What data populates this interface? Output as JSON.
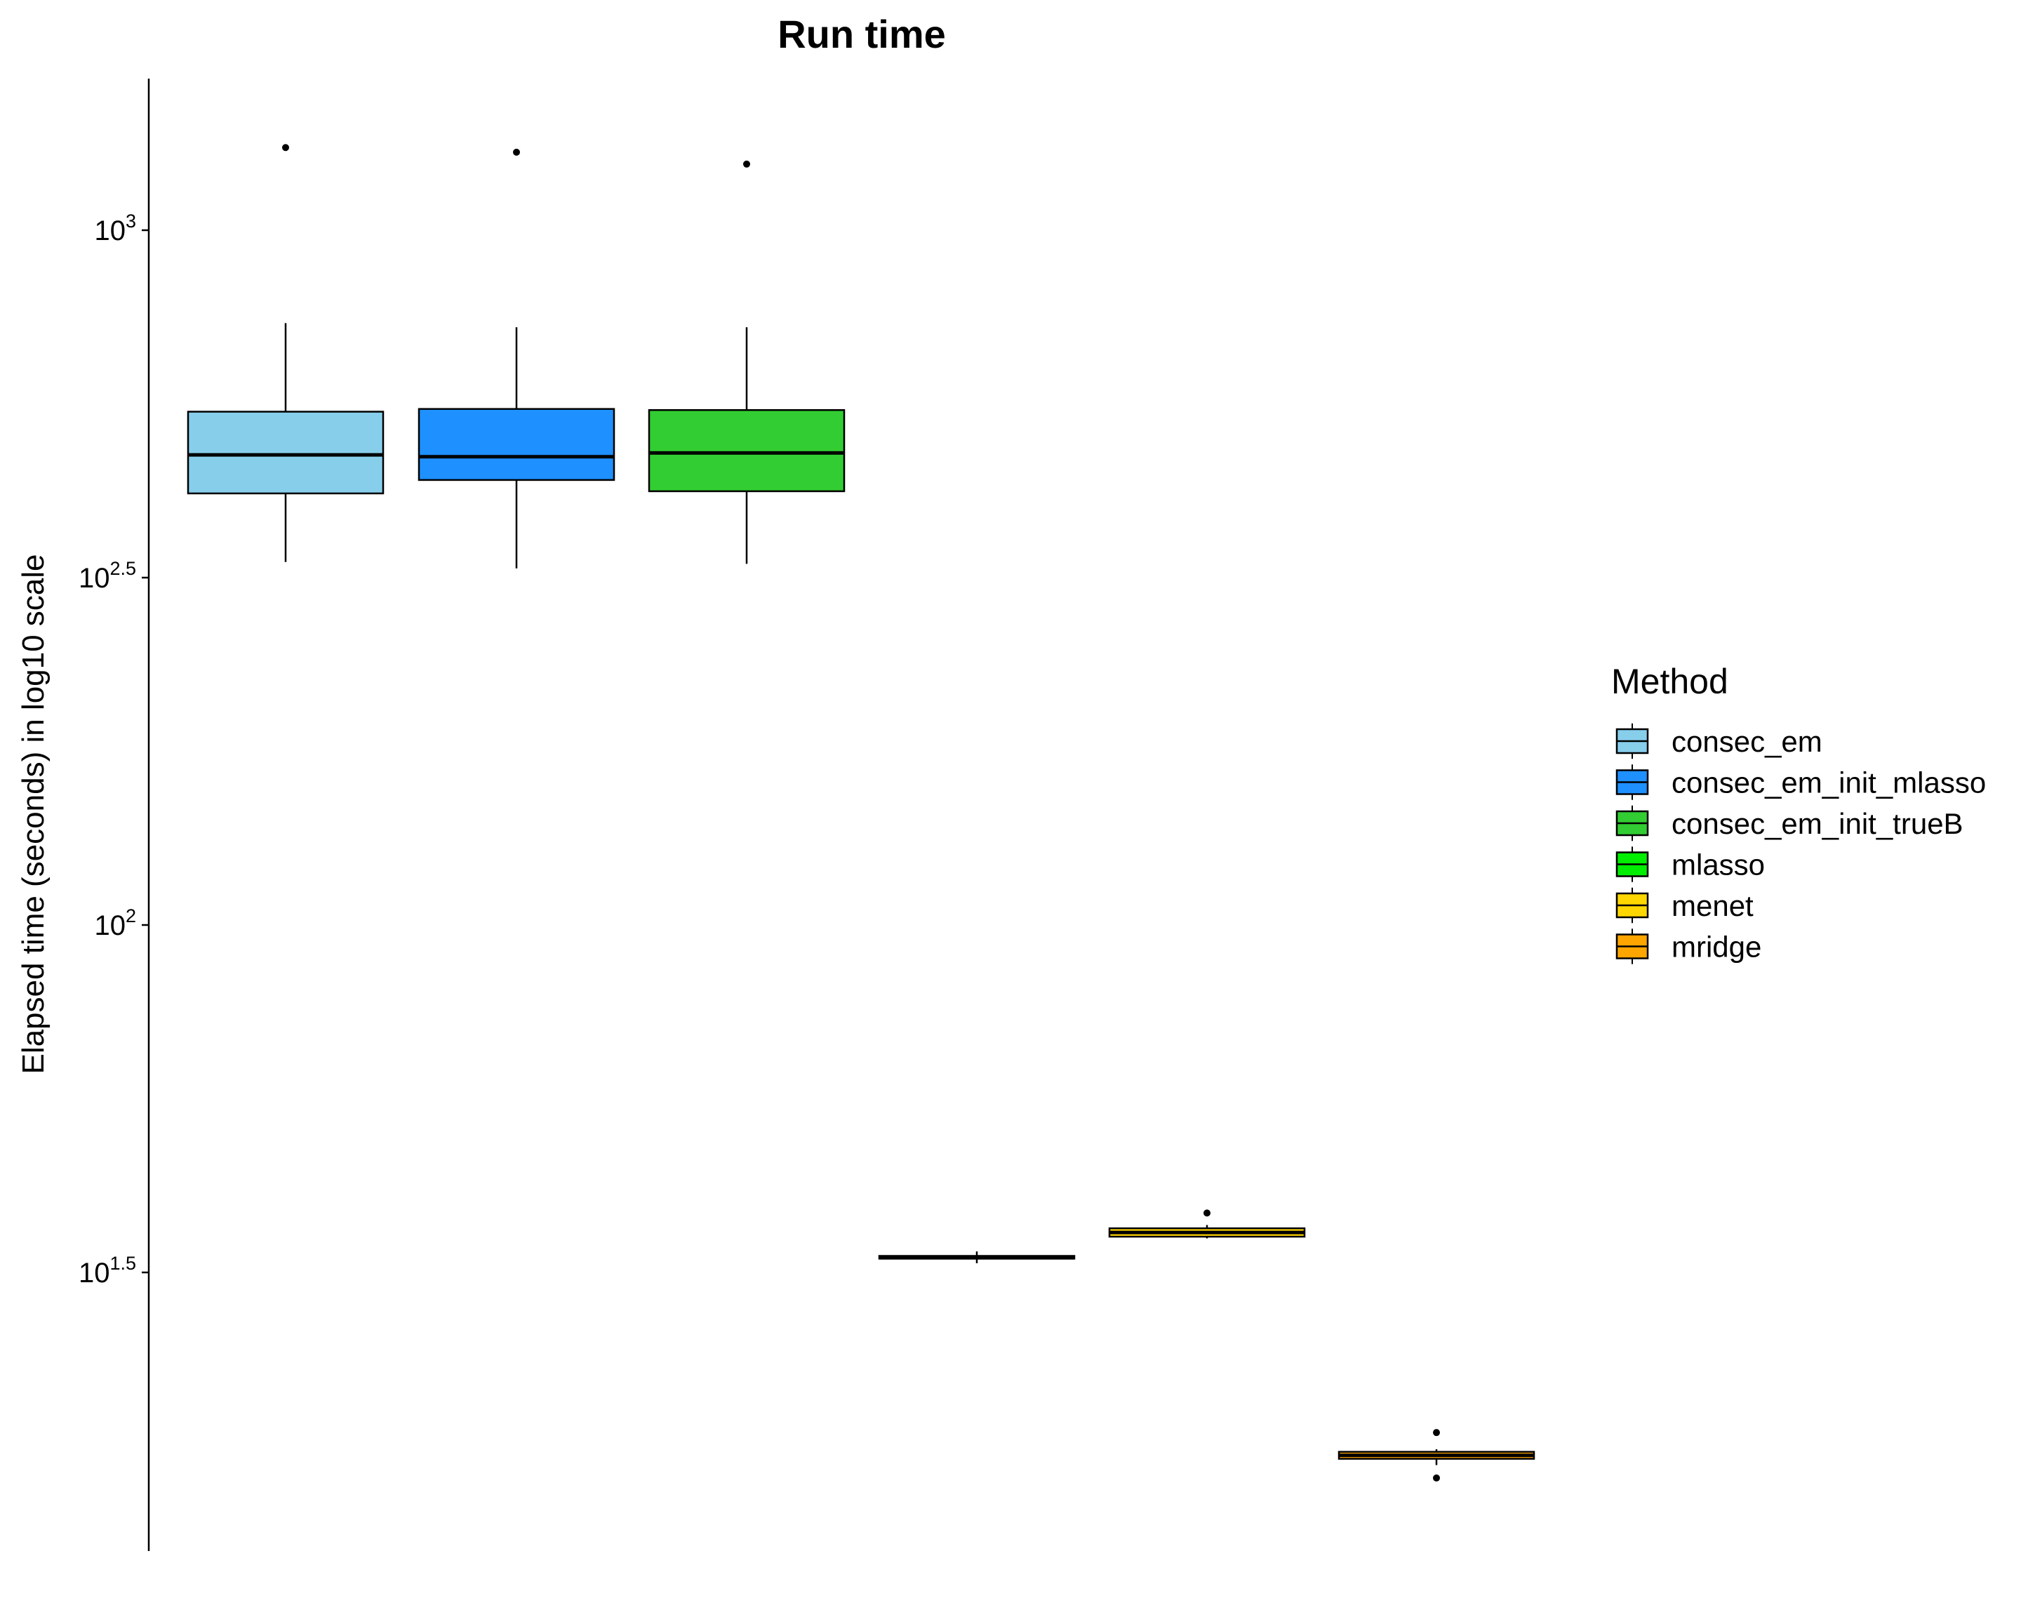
{
  "chart_data": {
    "type": "box",
    "title": "Run time",
    "xlabel": "",
    "ylabel": "Elapsed time (seconds) in log10 scale",
    "y_scale": "log10",
    "y_ticks": [
      {
        "value": 1000,
        "label_base": "10",
        "label_exp": "3"
      },
      {
        "value": 316.2,
        "label_base": "10",
        "label_exp": "2.5"
      },
      {
        "value": 100,
        "label_base": "10",
        "label_exp": "2"
      },
      {
        "value": 31.62,
        "label_base": "10",
        "label_exp": "1.5"
      }
    ],
    "ylim": [
      14.5,
      1730
    ],
    "legend": {
      "title": "Method",
      "position": "right",
      "entries": [
        "consec_em",
        "consec_em_init_mlasso",
        "consec_em_init_trueB",
        "mlasso",
        "menet",
        "mridge"
      ]
    },
    "grid": false,
    "series": [
      {
        "name": "consec_em",
        "color": "#87CEEB",
        "whisker_low": 333,
        "q1": 418,
        "median": 475,
        "q3": 548,
        "whisker_high": 735,
        "outliers": [
          1315
        ]
      },
      {
        "name": "consec_em_init_mlasso",
        "color": "#1E90FF",
        "whisker_low": 326,
        "q1": 437,
        "median": 472,
        "q3": 553,
        "whisker_high": 725,
        "outliers": [
          1295
        ]
      },
      {
        "name": "consec_em_init_trueB",
        "color": "#32CD32",
        "whisker_low": 331,
        "q1": 421,
        "median": 478,
        "q3": 551,
        "whisker_high": 725,
        "outliers": [
          1245
        ]
      },
      {
        "name": "mlasso",
        "color": "#00EE00",
        "whisker_low": 32.6,
        "q1": 33.1,
        "median": 33.2,
        "q3": 33.4,
        "whisker_high": 33.9,
        "outliers": []
      },
      {
        "name": "menet",
        "color": "#FFD700",
        "whisker_low": 35.4,
        "q1": 35.6,
        "median": 36.1,
        "q3": 36.6,
        "whisker_high": 37.0,
        "outliers": [
          38.5
        ]
      },
      {
        "name": "mridge",
        "color": "#FFA500",
        "whisker_low": 16.7,
        "q1": 17.05,
        "median": 17.25,
        "q3": 17.45,
        "whisker_high": 17.6,
        "outliers": [
          18.6,
          16.0
        ]
      }
    ]
  }
}
